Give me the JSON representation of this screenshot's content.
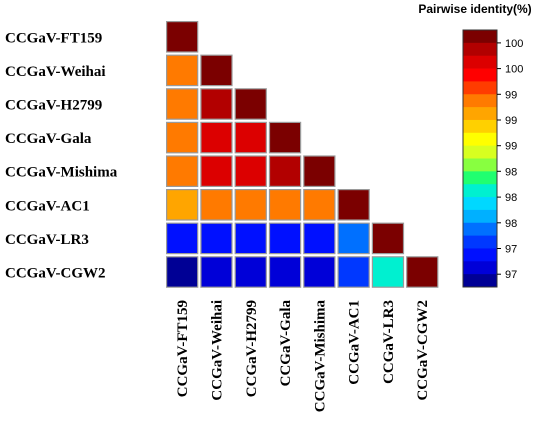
{
  "chart_data": {
    "type": "heatmap",
    "title": "",
    "labels": [
      "CCGaV-FT159",
      "CCGaV-Weihai",
      "CCGaV-H2799",
      "CCGaV-Gala",
      "CCGaV-Mishima",
      "CCGaV-AC1",
      "CCGaV-LR3",
      "CCGaV-CGW2"
    ],
    "matrix": [
      [
        100
      ],
      [
        99.2,
        100
      ],
      [
        99.2,
        99.8,
        100
      ],
      [
        99.2,
        99.7,
        99.7,
        100
      ],
      [
        99.2,
        99.6,
        99.6,
        99.8,
        100
      ],
      [
        99.0,
        99.2,
        99.2,
        99.2,
        99.2,
        100
      ],
      [
        97.2,
        97.3,
        97.3,
        97.3,
        97.3,
        97.6,
        100
      ],
      [
        96.9,
        97.1,
        97.1,
        97.1,
        97.1,
        97.4,
        98.0,
        100
      ]
    ],
    "colorbar": {
      "title": "Pairwise identity(%)",
      "tick_labels": [
        "100",
        "100",
        "99",
        "99",
        "99",
        "98",
        "98",
        "98",
        "97",
        "97"
      ],
      "colors": [
        "#7b0000",
        "#b20000",
        "#dc0000",
        "#ff0000",
        "#ff3c00",
        "#ff7a00",
        "#ffa500",
        "#ffd000",
        "#ffff00",
        "#d8ff20",
        "#88ff40",
        "#20ff70",
        "#00f0d0",
        "#00d8ff",
        "#00b0ff",
        "#0070ff",
        "#0038ff",
        "#0010ff",
        "#0000d8",
        "#000095"
      ],
      "range": [
        96.9,
        100
      ]
    }
  }
}
